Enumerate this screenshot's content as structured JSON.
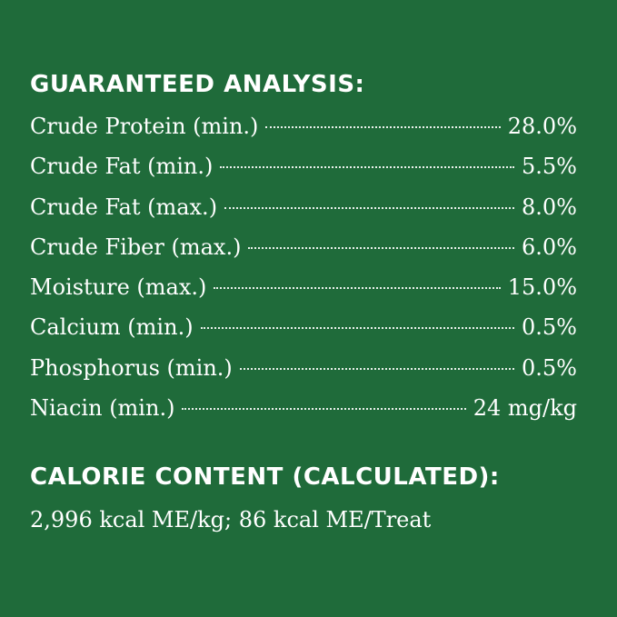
{
  "guaranteed_analysis": {
    "heading": "GUARANTEED ANALYSIS:",
    "rows": [
      {
        "label": "Crude Protein (min.)",
        "value": "28.0%"
      },
      {
        "label": "Crude Fat (min.)",
        "value": "5.5%"
      },
      {
        "label": "Crude Fat (max.)",
        "value": "8.0%"
      },
      {
        "label": "Crude Fiber (max.)",
        "value": "6.0%"
      },
      {
        "label": "Moisture (max.)",
        "value": "15.0%"
      },
      {
        "label": "Calcium (min.)",
        "value": "0.5%"
      },
      {
        "label": "Phosphorus (min.)",
        "value": "0.5%"
      },
      {
        "label": "Niacin (min.)",
        "value": "24 mg/kg"
      }
    ]
  },
  "calorie_content": {
    "heading": "CALORIE CONTENT (CALCULATED):",
    "text": "2,996 kcal ME/kg; 86 kcal ME/Treat"
  },
  "colors": {
    "background": "#1f6b3a",
    "text": "#ffffff"
  }
}
